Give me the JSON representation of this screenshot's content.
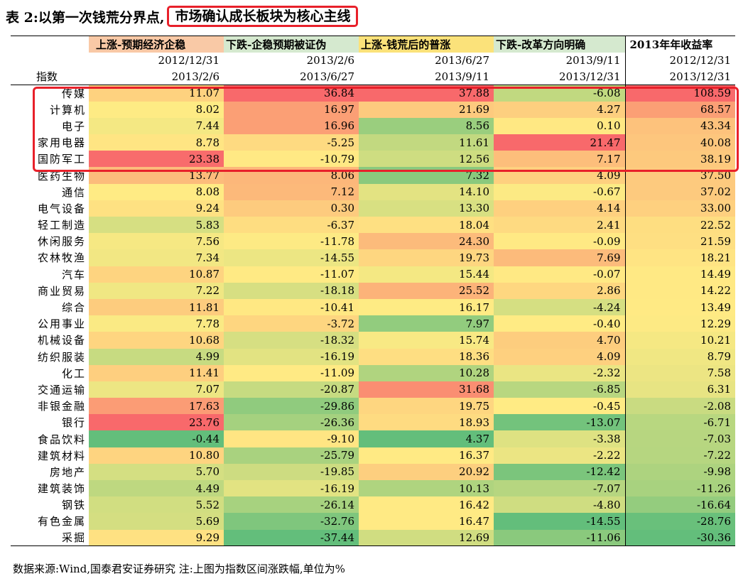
{
  "title": {
    "prefix": "表 2:以第一次钱荒分界点,",
    "boxed": "市场确认成长板块为核心主线"
  },
  "header": {
    "periods": [
      {
        "label": "上涨-预期经济企稳",
        "start": "2012/12/31",
        "end": "2013/2/6"
      },
      {
        "label": "下跌-企稳预期被证伪",
        "start": "2013/2/6",
        "end": "2013/6/27"
      },
      {
        "label": "上涨-钱荒后的普涨",
        "start": "2013/6/27",
        "end": "2013/9/11"
      },
      {
        "label": "下跌-改革方向明确",
        "start": "2013/9/11",
        "end": "2013/12/31"
      },
      {
        "label": "2013年年收益率",
        "start": "2012/12/31",
        "end": "2013/12/31"
      }
    ],
    "index_label": "指数"
  },
  "rows": [
    {
      "name": "传媒",
      "values": [
        "11.07",
        "36.84",
        "37.88",
        "-6.08",
        "108.59"
      ]
    },
    {
      "name": "计算机",
      "values": [
        "8.02",
        "16.97",
        "21.69",
        "4.27",
        "68.57"
      ]
    },
    {
      "name": "电子",
      "values": [
        "7.44",
        "16.96",
        "8.56",
        "0.10",
        "43.34"
      ]
    },
    {
      "name": "家用电器",
      "values": [
        "8.78",
        "-5.25",
        "11.61",
        "21.47",
        "40.08"
      ]
    },
    {
      "name": "国防军工",
      "values": [
        "23.38",
        "-10.79",
        "12.56",
        "7.17",
        "38.19"
      ]
    },
    {
      "name": "医药生物",
      "values": [
        "13.77",
        "8.06",
        "7.32",
        "4.09",
        "37.50"
      ]
    },
    {
      "name": "通信",
      "values": [
        "8.08",
        "7.12",
        "14.10",
        "-0.67",
        "37.02"
      ]
    },
    {
      "name": "电气设备",
      "values": [
        "9.24",
        "0.30",
        "13.30",
        "4.14",
        "33.00"
      ]
    },
    {
      "name": "轻工制造",
      "values": [
        "5.83",
        "-6.37",
        "18.04",
        "2.41",
        "22.52"
      ]
    },
    {
      "name": "休闲服务",
      "values": [
        "7.56",
        "-11.78",
        "24.30",
        "-0.09",
        "21.59"
      ]
    },
    {
      "name": "农林牧渔",
      "values": [
        "7.34",
        "-14.55",
        "19.73",
        "7.69",
        "18.21"
      ]
    },
    {
      "name": "汽车",
      "values": [
        "10.87",
        "-11.07",
        "15.44",
        "-0.07",
        "14.49"
      ]
    },
    {
      "name": "商业贸易",
      "values": [
        "7.22",
        "-18.18",
        "25.52",
        "2.86",
        "14.22"
      ]
    },
    {
      "name": "综合",
      "values": [
        "11.81",
        "-10.41",
        "16.17",
        "-4.24",
        "13.49"
      ]
    },
    {
      "name": "公用事业",
      "values": [
        "7.78",
        "-3.72",
        "7.97",
        "-0.40",
        "12.29"
      ]
    },
    {
      "name": "机械设备",
      "values": [
        "10.68",
        "-18.32",
        "15.74",
        "4.70",
        "10.21"
      ]
    },
    {
      "name": "纺织服装",
      "values": [
        "4.99",
        "-16.19",
        "18.36",
        "4.09",
        "8.79"
      ]
    },
    {
      "name": "化工",
      "values": [
        "11.41",
        "-11.09",
        "10.28",
        "-2.32",
        "7.58"
      ]
    },
    {
      "name": "交通运输",
      "values": [
        "7.07",
        "-20.87",
        "31.68",
        "-6.85",
        "6.31"
      ]
    },
    {
      "name": "非银金融",
      "values": [
        "17.63",
        "-29.86",
        "19.75",
        "-0.45",
        "-2.08"
      ]
    },
    {
      "name": "银行",
      "values": [
        "23.76",
        "-26.36",
        "18.93",
        "-13.07",
        "-6.71"
      ]
    },
    {
      "name": "食品饮料",
      "values": [
        "-0.44",
        "-9.10",
        "4.37",
        "-3.38",
        "-7.03"
      ]
    },
    {
      "name": "建筑材料",
      "values": [
        "10.80",
        "-25.79",
        "16.37",
        "-2.22",
        "-7.22"
      ]
    },
    {
      "name": "房地产",
      "values": [
        "5.70",
        "-19.85",
        "20.92",
        "-12.42",
        "-9.98"
      ]
    },
    {
      "name": "建筑装饰",
      "values": [
        "4.49",
        "-16.19",
        "10.13",
        "-7.07",
        "-11.26"
      ]
    },
    {
      "name": "钢铁",
      "values": [
        "5.52",
        "-26.14",
        "16.42",
        "-4.80",
        "-16.64"
      ]
    },
    {
      "name": "有色金属",
      "values": [
        "5.69",
        "-32.76",
        "16.47",
        "-14.55",
        "-28.76"
      ]
    },
    {
      "name": "采掘",
      "values": [
        "9.29",
        "-37.44",
        "12.69",
        "-11.06",
        "-30.36"
      ]
    }
  ],
  "footer": "数据来源:Wind,国泰君安证券研究    注:上图为指数区间涨跌幅,单位为%",
  "colors": {
    "high": "#f8696b",
    "mid": "#ffeb84",
    "low": "#63be7b",
    "highlight_border": "#e8202a"
  }
}
